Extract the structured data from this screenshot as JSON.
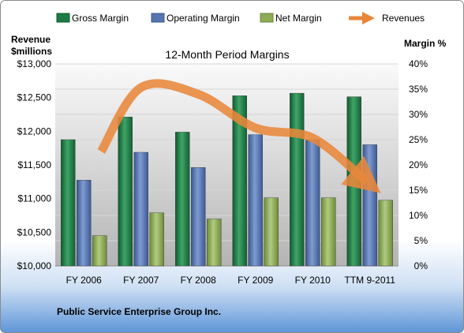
{
  "company": "Public Service Enterprise Group Inc.",
  "chart_data": {
    "type": "bar",
    "title": "12-Month Period Margins",
    "categories": [
      "FY 2006",
      "FY 2007",
      "FY 2008",
      "FY 2009",
      "FY 2010",
      "TTM 9-2011"
    ],
    "series": [
      {
        "name": "Gross Margin",
        "axis": "right",
        "values": [
          25.0,
          29.5,
          26.5,
          33.7,
          34.2,
          33.5
        ]
      },
      {
        "name": "Operating Margin",
        "axis": "right",
        "values": [
          17.0,
          22.5,
          19.5,
          26.0,
          25.0,
          24.0
        ]
      },
      {
        "name": "Net Margin",
        "axis": "right",
        "values": [
          6.0,
          10.5,
          9.3,
          13.5,
          13.5,
          13.0
        ]
      },
      {
        "name": "Revenues",
        "axis": "left",
        "type": "line",
        "values": [
          11700,
          12650,
          12550,
          12050,
          11900,
          11250
        ]
      }
    ],
    "y_left": {
      "label_line1": "Revenue",
      "label_line2": "$millions",
      "range": [
        10000,
        13000
      ],
      "ticks": [
        "$10,000",
        "$10,500",
        "$11,000",
        "$11,500",
        "$12,000",
        "$12,500",
        "$13,000"
      ]
    },
    "y_right": {
      "label": "Margin %",
      "range": [
        0,
        40
      ],
      "ticks": [
        "0%",
        "5%",
        "10%",
        "15%",
        "20%",
        "25%",
        "30%",
        "35%",
        "40%"
      ]
    },
    "legend_position": "top",
    "grid": true
  },
  "colors": {
    "gross": "#1E7A45",
    "operating": "#5575B0",
    "net": "#8DAA55",
    "revenues": "#E8873A"
  }
}
